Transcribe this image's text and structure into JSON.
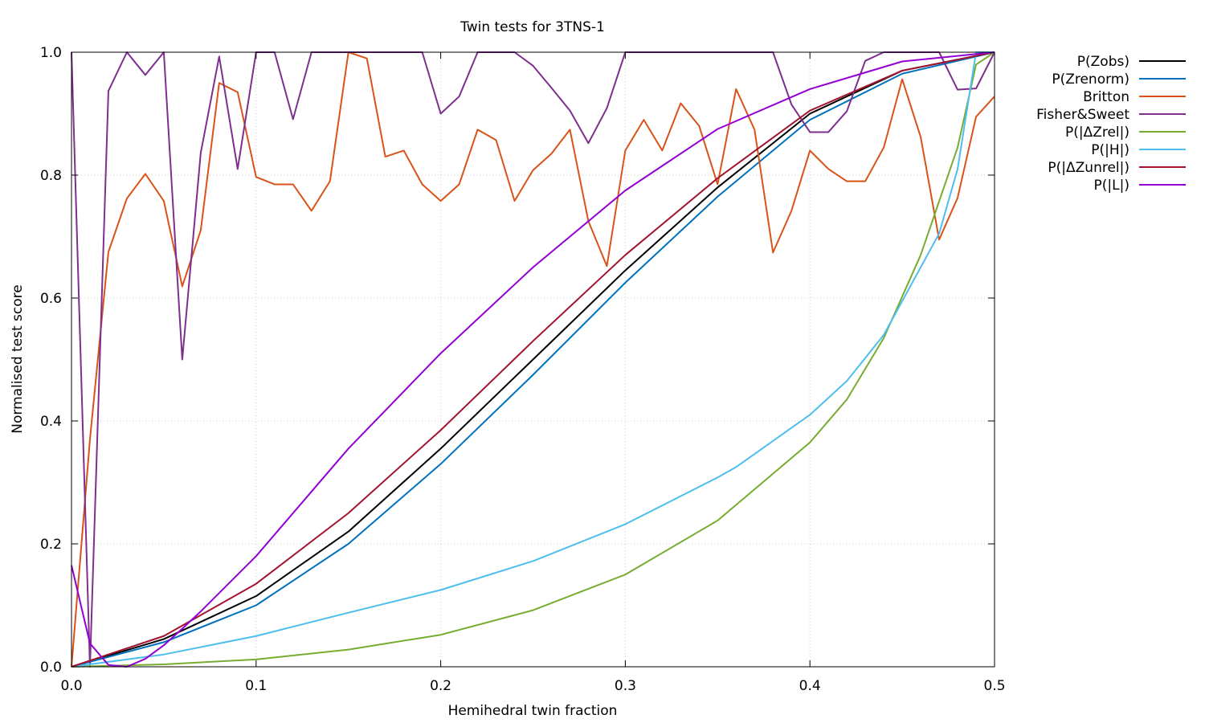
{
  "chart_data": {
    "type": "line",
    "title": "Twin tests for 3TNS-1",
    "xlabel": "Hemihedral twin fraction",
    "ylabel": "Normalised test score",
    "xlim": [
      0,
      0.5
    ],
    "ylim": [
      0,
      1
    ],
    "xticks": [
      "0.0",
      "0.1",
      "0.2",
      "0.3",
      "0.4",
      "0.5"
    ],
    "yticks": [
      "0.0",
      "0.2",
      "0.4",
      "0.6",
      "0.8",
      "1.0"
    ],
    "grid": true,
    "legend_position": "outside-top-right",
    "series": [
      {
        "name": "P(Zobs)",
        "color": "#000000",
        "x": [
          0,
          0.05,
          0.1,
          0.15,
          0.2,
          0.25,
          0.3,
          0.35,
          0.4,
          0.45,
          0.5
        ],
        "y": [
          0,
          0.045,
          0.115,
          0.22,
          0.355,
          0.5,
          0.645,
          0.78,
          0.9,
          0.97,
          1.0
        ]
      },
      {
        "name": "P(Zrenorm)",
        "color": "#0072bd",
        "x": [
          0,
          0.05,
          0.1,
          0.15,
          0.2,
          0.25,
          0.3,
          0.35,
          0.4,
          0.45,
          0.5
        ],
        "y": [
          0,
          0.04,
          0.1,
          0.2,
          0.33,
          0.475,
          0.625,
          0.765,
          0.89,
          0.965,
          1.0
        ]
      },
      {
        "name": "Britton",
        "color": "#d95319",
        "x": [
          0,
          0.01,
          0.02,
          0.03,
          0.04,
          0.05,
          0.06,
          0.07,
          0.08,
          0.09,
          0.1,
          0.11,
          0.12,
          0.13,
          0.14,
          0.15,
          0.16,
          0.17,
          0.18,
          0.19,
          0.2,
          0.21,
          0.22,
          0.23,
          0.24,
          0.25,
          0.26,
          0.27,
          0.28,
          0.29,
          0.3,
          0.31,
          0.32,
          0.33,
          0.34,
          0.35,
          0.36,
          0.37,
          0.38,
          0.39,
          0.4,
          0.41,
          0.42,
          0.43,
          0.44,
          0.45,
          0.46,
          0.47,
          0.48,
          0.49,
          0.5
        ],
        "y": [
          0,
          0.37,
          0.675,
          0.762,
          0.802,
          0.758,
          0.619,
          0.71,
          0.95,
          0.935,
          0.797,
          0.785,
          0.785,
          0.742,
          0.79,
          1.0,
          0.99,
          0.83,
          0.84,
          0.785,
          0.758,
          0.785,
          0.874,
          0.857,
          0.758,
          0.808,
          0.835,
          0.874,
          0.725,
          0.652,
          0.84,
          0.89,
          0.84,
          0.917,
          0.88,
          0.785,
          0.94,
          0.874,
          0.674,
          0.742,
          0.84,
          0.81,
          0.79,
          0.79,
          0.845,
          0.956,
          0.862,
          0.695,
          0.763,
          0.895,
          0.928
        ]
      },
      {
        "name": "Fisher&Sweet",
        "color": "#7e2f8e",
        "x": [
          0,
          0.01,
          0.02,
          0.03,
          0.04,
          0.05,
          0.06,
          0.07,
          0.08,
          0.09,
          0.1,
          0.11,
          0.12,
          0.13,
          0.14,
          0.15,
          0.16,
          0.17,
          0.18,
          0.19,
          0.2,
          0.21,
          0.22,
          0.23,
          0.24,
          0.25,
          0.26,
          0.27,
          0.28,
          0.29,
          0.3,
          0.31,
          0.32,
          0.33,
          0.34,
          0.35,
          0.36,
          0.37,
          0.38,
          0.39,
          0.4,
          0.41,
          0.42,
          0.43,
          0.44,
          0.45,
          0.46,
          0.47,
          0.48,
          0.49,
          0.5
        ],
        "y": [
          1.0,
          0.0,
          0.937,
          1.0,
          0.963,
          1.0,
          0.5,
          0.836,
          0.993,
          0.81,
          1.0,
          1.0,
          0.891,
          1.0,
          1.0,
          1.0,
          1.0,
          1.0,
          1.0,
          1.0,
          0.9,
          0.928,
          1.0,
          1.0,
          1.0,
          0.978,
          0.942,
          0.905,
          0.852,
          0.909,
          1.0,
          1.0,
          1.0,
          1.0,
          1.0,
          1.0,
          1.0,
          1.0,
          1.0,
          0.915,
          0.87,
          0.87,
          0.904,
          0.986,
          1.0,
          1.0,
          1.0,
          1.0,
          0.939,
          0.941,
          1.0
        ]
      },
      {
        "name": "P(|ΔZrel|)",
        "color": "#77ac30",
        "x": [
          0,
          0.05,
          0.1,
          0.15,
          0.2,
          0.25,
          0.3,
          0.35,
          0.4,
          0.42,
          0.44,
          0.46,
          0.48,
          0.49,
          0.5
        ],
        "y": [
          0,
          0.004,
          0.012,
          0.028,
          0.052,
          0.092,
          0.15,
          0.238,
          0.365,
          0.435,
          0.535,
          0.67,
          0.845,
          0.98,
          1.0
        ]
      },
      {
        "name": "P(|H|)",
        "color": "#4dbeee",
        "x": [
          0,
          0.05,
          0.1,
          0.15,
          0.2,
          0.25,
          0.3,
          0.35,
          0.36,
          0.4,
          0.42,
          0.44,
          0.46,
          0.47,
          0.48,
          0.49,
          0.5
        ],
        "y": [
          0,
          0.02,
          0.05,
          0.088,
          0.125,
          0.172,
          0.232,
          0.308,
          0.325,
          0.41,
          0.465,
          0.54,
          0.65,
          0.705,
          0.81,
          1.0,
          1.0
        ]
      },
      {
        "name": "P(|ΔZunrel|)",
        "color": "#a2142f",
        "x": [
          0,
          0.05,
          0.1,
          0.15,
          0.2,
          0.25,
          0.3,
          0.35,
          0.4,
          0.45,
          0.5
        ],
        "y": [
          0,
          0.05,
          0.135,
          0.25,
          0.385,
          0.53,
          0.67,
          0.795,
          0.905,
          0.97,
          1.0
        ]
      },
      {
        "name": "P(|L|)",
        "color": "#9400d3",
        "x": [
          0,
          0.01,
          0.02,
          0.03,
          0.04,
          0.05,
          0.06,
          0.07,
          0.1,
          0.15,
          0.2,
          0.25,
          0.3,
          0.35,
          0.4,
          0.45,
          0.5
        ],
        "y": [
          0.165,
          0.038,
          0.003,
          0.0,
          0.013,
          0.035,
          0.062,
          0.09,
          0.18,
          0.355,
          0.51,
          0.65,
          0.775,
          0.875,
          0.94,
          0.985,
          1.0
        ]
      }
    ]
  }
}
